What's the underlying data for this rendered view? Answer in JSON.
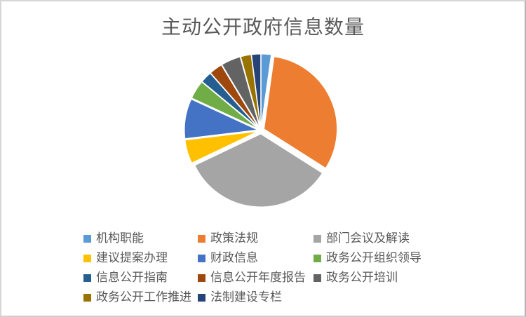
{
  "chart_data": {
    "type": "pie",
    "title": "主动公开政府信息数量",
    "legend_position": "bottom",
    "exploded": true,
    "start_angle_deg": 0,
    "value_labels_shown": false,
    "categories": [
      "机构职能",
      "政策法规",
      "部门会议及解读",
      "建议提案办理",
      "财政信息",
      "政务公开组织领导",
      "信息公开指南",
      "信息公开年度报告",
      "政务公开培训",
      "政务公开工作推进",
      "法制建设专栏"
    ],
    "values_percent": [
      2.2,
      31.8,
      33.9,
      5.2,
      8.8,
      4.1,
      2.5,
      2.9,
      4.3,
      2.3,
      2.0
    ],
    "colors": [
      "#5B9BD5",
      "#ED7D31",
      "#A5A5A5",
      "#FFC000",
      "#4472C4",
      "#70AD47",
      "#255E91",
      "#9E480E",
      "#636363",
      "#997300",
      "#264478"
    ]
  },
  "style": {
    "title_color": "#595959",
    "legend_text_color": "#595959",
    "frame_border_color": "#d6d6d6",
    "background": "#ffffff"
  }
}
